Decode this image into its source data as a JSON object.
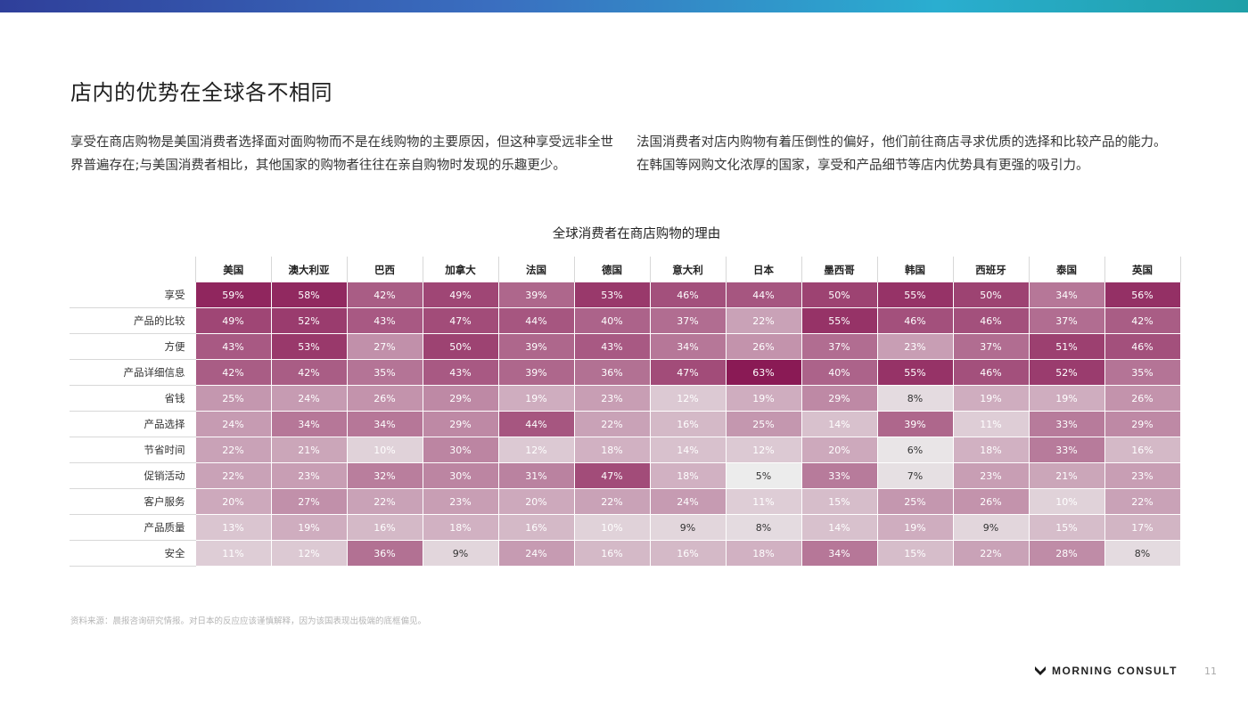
{
  "title": "店内的优势在全球各不相同",
  "paragraphs": {
    "left": "享受在商店购物是美国消费者选择面对面购物而不是在线购物的主要原因，但这种享受远非全世界普遍存在;与美国消费者相比，其他国家的购物者往往在亲自购物时发现的乐趣更少。",
    "right": "法国消费者对店内购物有着压倒性的偏好，他们前往商店寻求优质的选择和比较产品的能力。在韩国等网购文化浓厚的国家，享受和产品细节等店内优势具有更强的吸引力。"
  },
  "chart_data": {
    "type": "heatmap",
    "title": "全球消费者在商店购物的理由",
    "columns": [
      "美国",
      "澳大利亚",
      "巴西",
      "加拿大",
      "法国",
      "德国",
      "意大利",
      "日本",
      "墨西哥",
      "韩国",
      "西班牙",
      "泰国",
      "英国"
    ],
    "rows": [
      {
        "label": "享受",
        "values": [
          59,
          58,
          42,
          49,
          39,
          53,
          46,
          44,
          50,
          55,
          50,
          34,
          56
        ]
      },
      {
        "label": "产品的比较",
        "values": [
          49,
          52,
          43,
          47,
          44,
          40,
          37,
          22,
          55,
          46,
          46,
          37,
          42
        ]
      },
      {
        "label": "方便",
        "values": [
          43,
          53,
          27,
          50,
          39,
          43,
          34,
          26,
          37,
          23,
          37,
          51,
          46
        ]
      },
      {
        "label": "产品详细信息",
        "values": [
          42,
          42,
          35,
          43,
          39,
          36,
          47,
          63,
          40,
          55,
          46,
          52,
          35
        ]
      },
      {
        "label": "省钱",
        "values": [
          25,
          24,
          26,
          29,
          19,
          23,
          12,
          19,
          29,
          8,
          19,
          19,
          26
        ]
      },
      {
        "label": "产品选择",
        "values": [
          24,
          34,
          34,
          29,
          44,
          22,
          16,
          25,
          14,
          39,
          11,
          33,
          29
        ]
      },
      {
        "label": "节省时间",
        "values": [
          22,
          21,
          10,
          30,
          12,
          18,
          14,
          12,
          20,
          6,
          18,
          33,
          16
        ]
      },
      {
        "label": "促销活动",
        "values": [
          22,
          23,
          32,
          30,
          31,
          47,
          18,
          5,
          33,
          7,
          23,
          21,
          23
        ]
      },
      {
        "label": "客户服务",
        "values": [
          20,
          27,
          22,
          23,
          20,
          22,
          24,
          11,
          15,
          25,
          26,
          10,
          22
        ]
      },
      {
        "label": "产品质量",
        "values": [
          13,
          19,
          16,
          18,
          16,
          10,
          9,
          8,
          14,
          19,
          9,
          15,
          17
        ]
      },
      {
        "label": "安全",
        "values": [
          11,
          12,
          36,
          9,
          24,
          16,
          16,
          18,
          34,
          15,
          22,
          28,
          8
        ]
      }
    ],
    "value_suffix": "%",
    "color_low": "#ececec",
    "color_high": "#8a1a55"
  },
  "footnote": "资料来源：晨报咨询研究情报。对日本的反应应该谨慎解释，因为该国表现出极端的底框偏见。",
  "logo": {
    "text": "MORNING CONSULT",
    "icon": "morning-consult-logo-icon"
  },
  "page_number": "11"
}
